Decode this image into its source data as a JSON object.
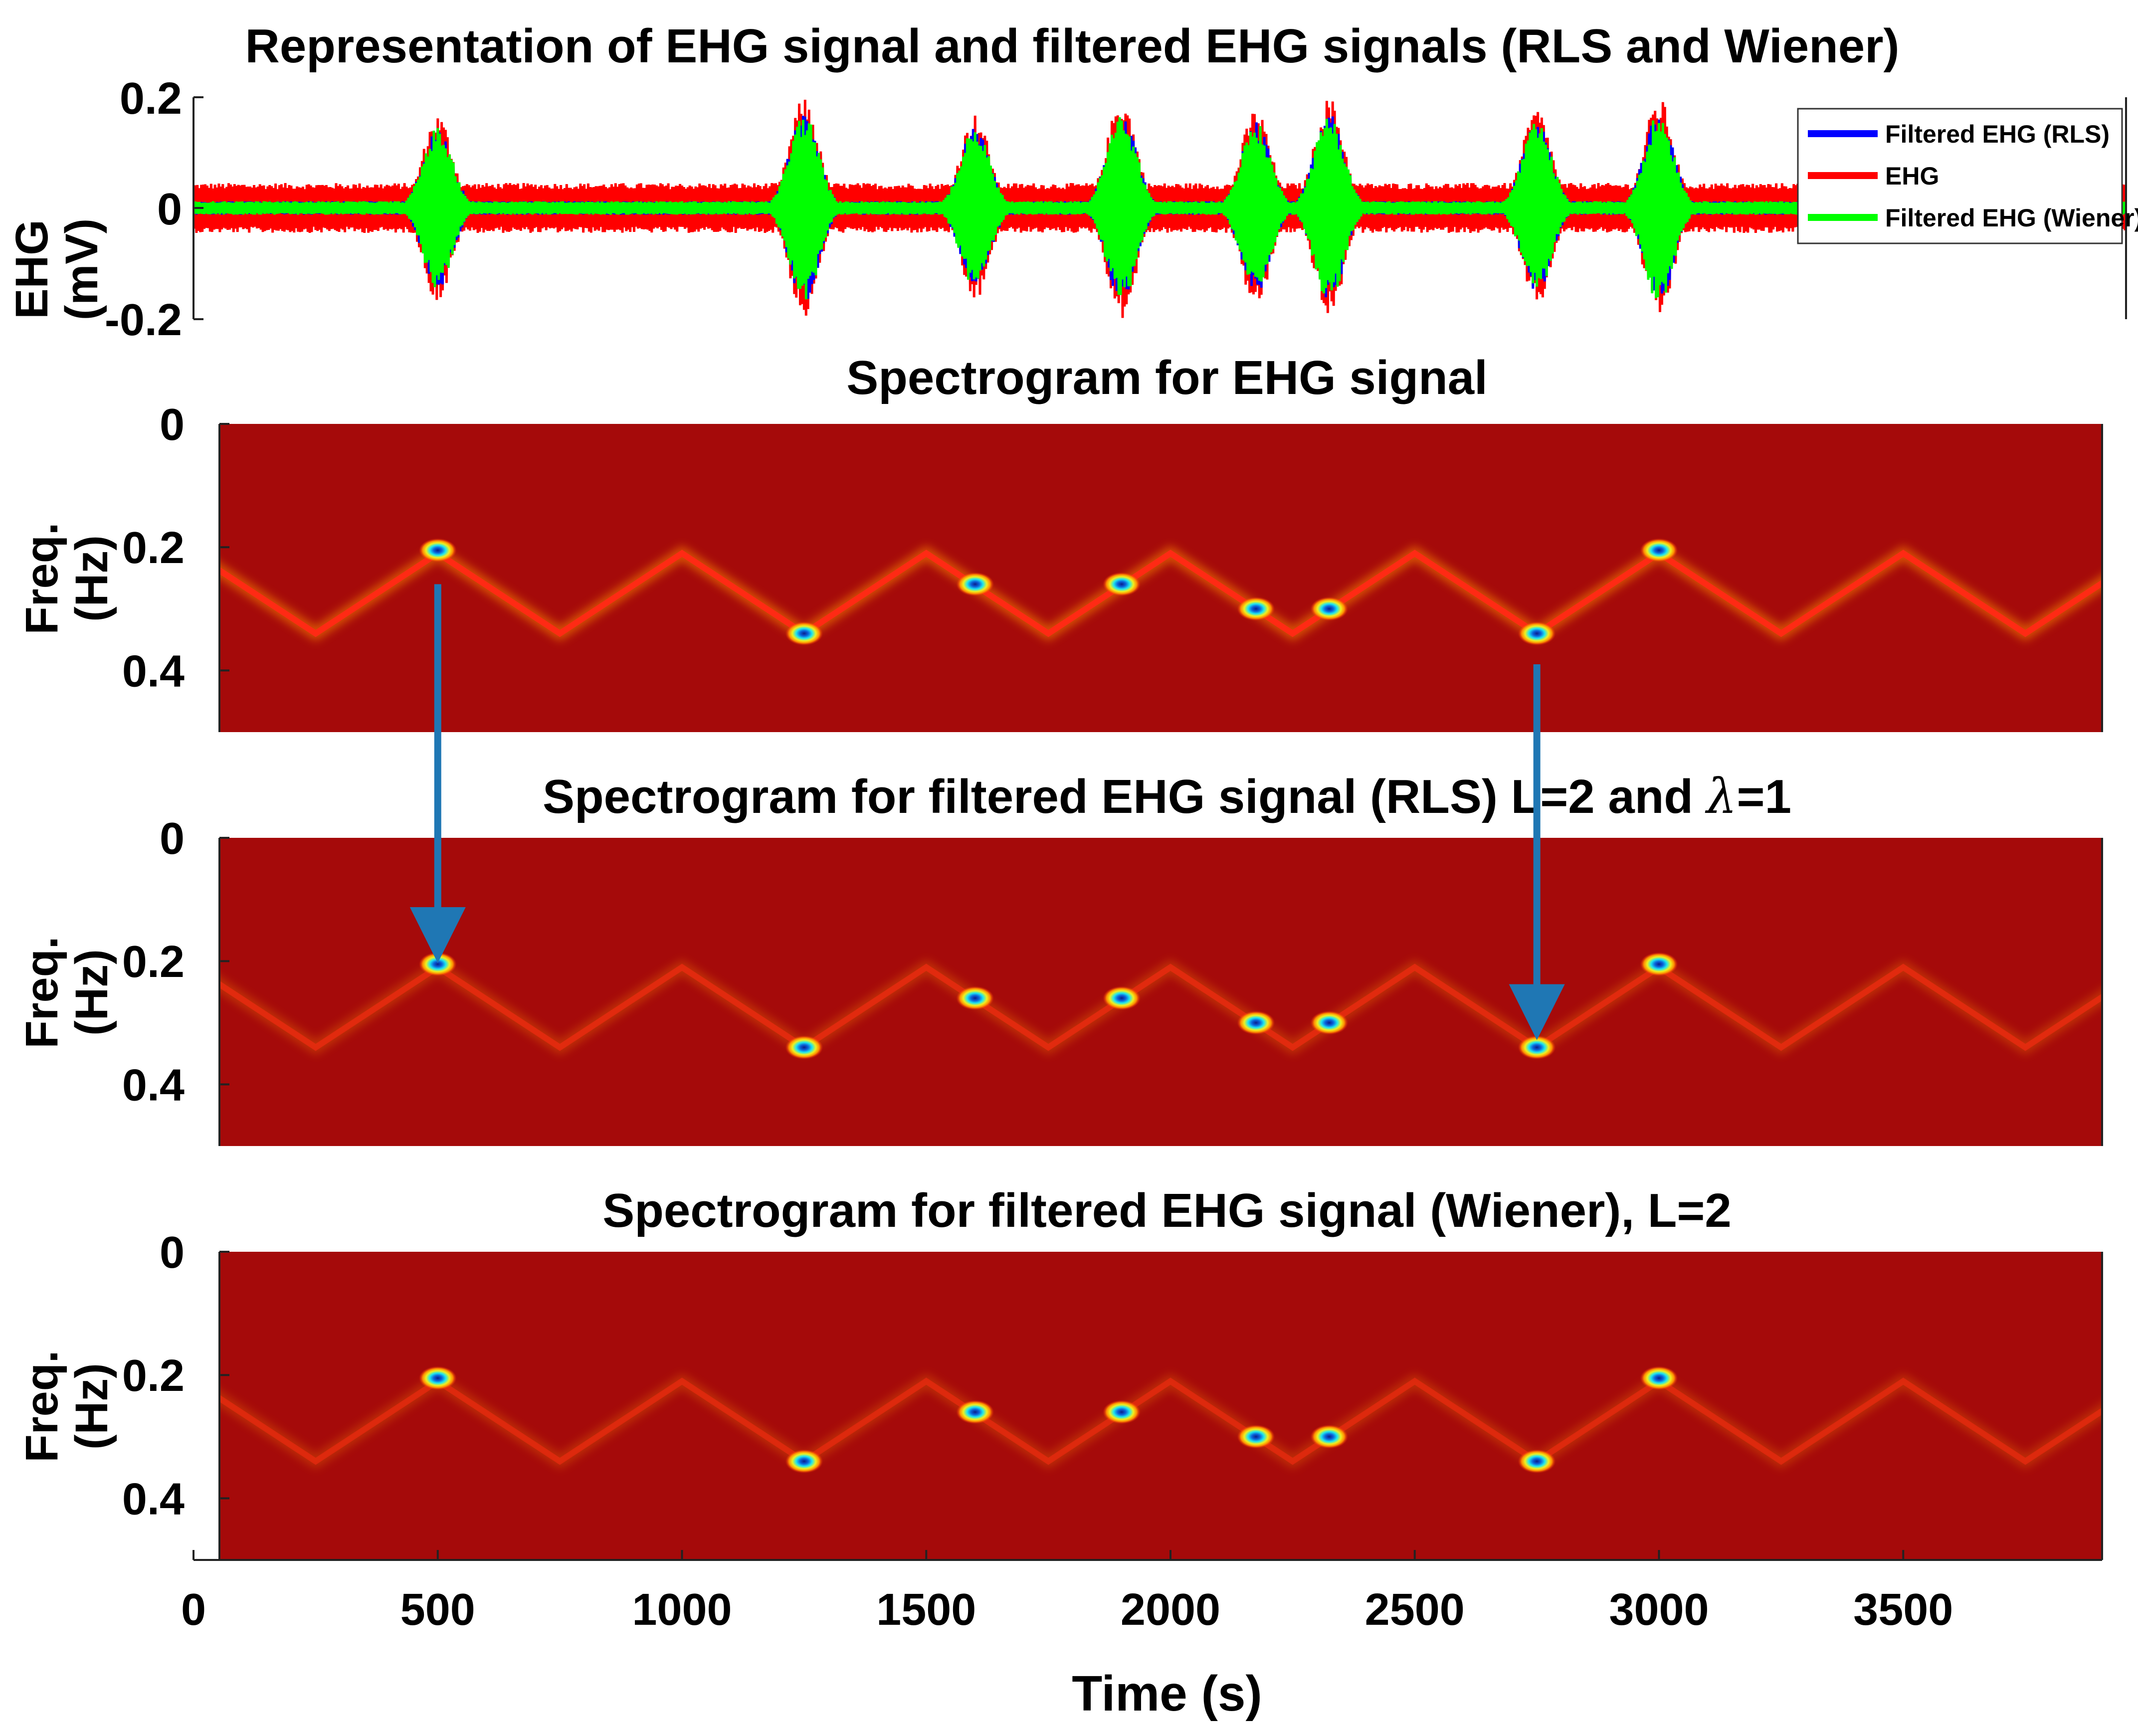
{
  "chart_data": [
    {
      "type": "line",
      "title": "Representation of EHG signal and filtered EHG signals (RLS and Wiener)",
      "ylabel": [
        "EHG",
        "(mV)"
      ],
      "yticks": [
        "0.2",
        "0",
        "-0.2"
      ],
      "ylim": [
        -0.2,
        0.2
      ],
      "xlim": [
        0,
        4000
      ],
      "legend_position": "top-right",
      "series": [
        {
          "name": "Filtered EHG (RLS)",
          "color": "#0000ff",
          "baseline_amp": 0.012
        },
        {
          "name": "EHG",
          "color": "#ff0000",
          "baseline_amp": 0.045
        },
        {
          "name": "Filtered EHG (Wiener)",
          "color": "#00ff00",
          "baseline_amp": 0.012
        }
      ],
      "bursts": [
        {
          "t": 500,
          "amp": 0.17
        },
        {
          "t": 1250,
          "amp": 0.2
        },
        {
          "t": 1600,
          "amp": 0.17
        },
        {
          "t": 1900,
          "amp": 0.2
        },
        {
          "t": 2175,
          "amp": 0.18
        },
        {
          "t": 2325,
          "amp": 0.2
        },
        {
          "t": 2750,
          "amp": 0.18
        },
        {
          "t": 3000,
          "amp": 0.2
        }
      ]
    },
    {
      "type": "heatmap",
      "title": "Spectrogram for EHG signal",
      "ylabel": [
        "Freq.",
        "(Hz)"
      ],
      "yticks": [
        "0",
        "0.2",
        "0.4"
      ],
      "ylim": [
        0,
        0.5
      ],
      "ridge_intensity": 1.0
    },
    {
      "type": "heatmap",
      "title_prefix": "Spectrogram for filtered EHG signal (RLS) L=2 and ",
      "title_symbol": "λ",
      "title_suffix": "=1",
      "ylabel": [
        "Freq.",
        "(Hz)"
      ],
      "yticks": [
        "0",
        "0.2",
        "0.4"
      ],
      "ylim": [
        0,
        0.5
      ],
      "ridge_intensity": 0.55
    },
    {
      "type": "heatmap",
      "title": "Spectrogram for filtered EHG signal (Wiener), L=2",
      "ylabel": [
        "Freq.",
        "(Hz)"
      ],
      "yticks": [
        "0",
        "0.2",
        "0.4"
      ],
      "ylim": [
        0,
        0.5
      ],
      "ridge_intensity": 0.5,
      "xlabel": "Time (s)",
      "xticks": [
        "0",
        "500",
        "1000",
        "1500",
        "2000",
        "2500",
        "3000",
        "3500"
      ]
    }
  ],
  "spectrogram_ridge": {
    "time": [
      0,
      250,
      500,
      750,
      1000,
      1250,
      1500,
      1750,
      2000,
      2250,
      2500,
      2750,
      3000,
      3250,
      3500,
      3750,
      4000
    ],
    "freq": [
      0.21,
      0.34,
      0.21,
      0.34,
      0.21,
      0.34,
      0.21,
      0.34,
      0.21,
      0.34,
      0.21,
      0.34,
      0.21,
      0.34,
      0.21,
      0.34,
      0.21
    ]
  },
  "spectrogram_hotspots": [
    {
      "t": 500,
      "f": 0.205
    },
    {
      "t": 1250,
      "f": 0.34
    },
    {
      "t": 1600,
      "f": 0.26
    },
    {
      "t": 1900,
      "f": 0.26
    },
    {
      "t": 2175,
      "f": 0.3
    },
    {
      "t": 2325,
      "f": 0.3
    },
    {
      "t": 2750,
      "f": 0.34
    },
    {
      "t": 3000,
      "f": 0.205
    }
  ],
  "annotations": [
    {
      "from_t": 500,
      "to_t": 500,
      "arrow": "panel 2 to panel 3"
    },
    {
      "from_t": 2750,
      "to_t": 2750,
      "arrow": "panel 2 to panel 3"
    }
  ],
  "colors": {
    "spectrogram_background": "#a50a0a",
    "ridge": "#ff2a14",
    "arrow": "#1f77b4"
  }
}
